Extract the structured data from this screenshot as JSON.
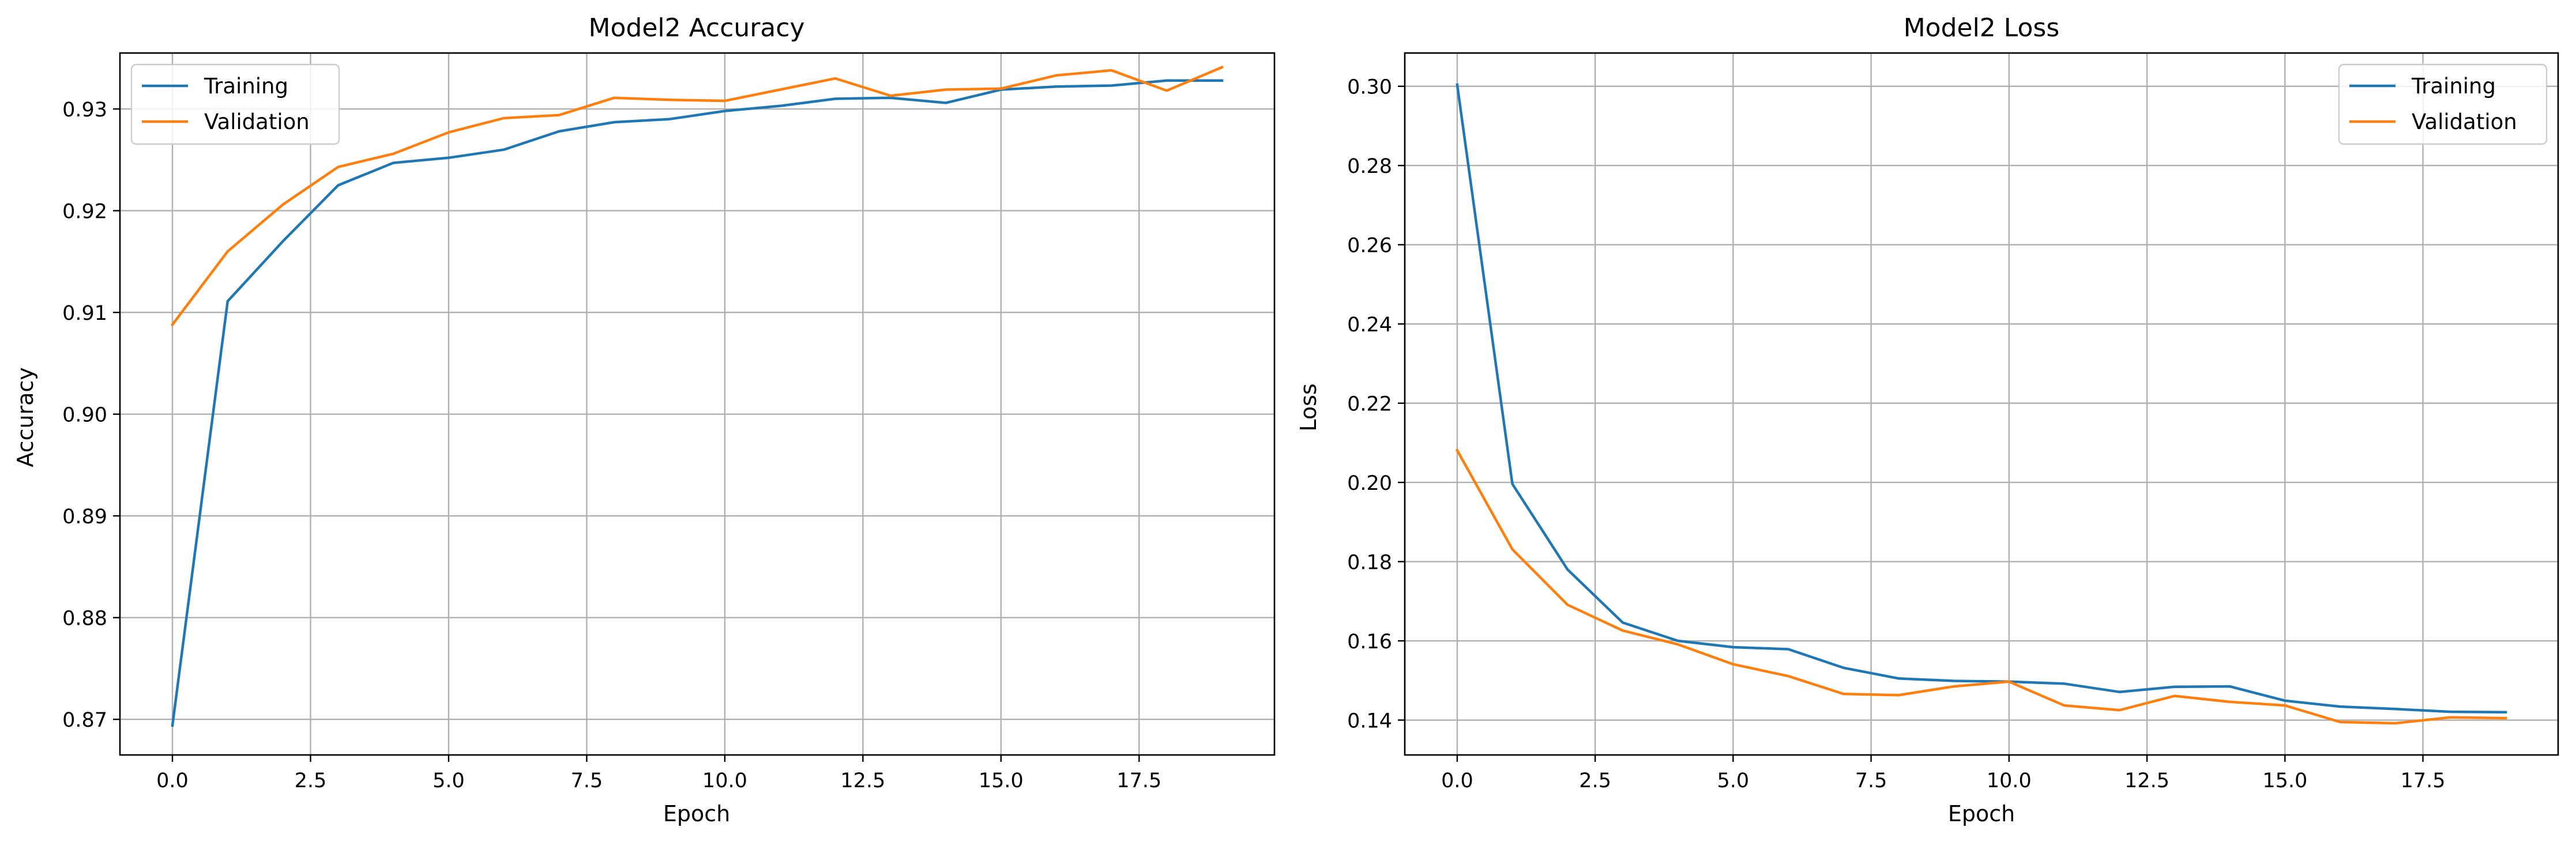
{
  "chart_data": [
    {
      "type": "line",
      "title": "Model2 Accuracy",
      "xlabel": "Epoch",
      "ylabel": "Accuracy",
      "xlim": [
        -0.95,
        19.95
      ],
      "ylim": [
        0.8665,
        0.9355
      ],
      "xticks": [
        "0.0",
        "2.5",
        "5.0",
        "7.5",
        "10.0",
        "12.5",
        "15.0",
        "17.5"
      ],
      "yticks": [
        "0.87",
        "0.88",
        "0.89",
        "0.90",
        "0.91",
        "0.92",
        "0.93"
      ],
      "grid": true,
      "legend_position": "upper left",
      "x": [
        0,
        1,
        2,
        3,
        4,
        5,
        6,
        7,
        8,
        9,
        10,
        11,
        12,
        13,
        14,
        15,
        16,
        17,
        18,
        19
      ],
      "series": [
        {
          "name": "Training",
          "color": "#1f77b4",
          "values": [
            0.8694,
            0.9111,
            0.917,
            0.9225,
            0.9247,
            0.9252,
            0.926,
            0.9278,
            0.9287,
            0.929,
            0.9298,
            0.9303,
            0.931,
            0.9311,
            0.9306,
            0.9319,
            0.9322,
            0.9323,
            0.9328,
            0.9328
          ]
        },
        {
          "name": "Validation",
          "color": "#ff7f0e",
          "values": [
            0.9088,
            0.916,
            0.9206,
            0.9243,
            0.9256,
            0.9277,
            0.9291,
            0.9294,
            0.9311,
            0.9309,
            0.9308,
            0.9319,
            0.933,
            0.9313,
            0.9319,
            0.932,
            0.9333,
            0.9338,
            0.9318,
            0.9341
          ]
        }
      ]
    },
    {
      "type": "line",
      "title": "Model2 Loss",
      "xlabel": "Epoch",
      "ylabel": "Loss",
      "xlim": [
        -0.95,
        19.95
      ],
      "ylim": [
        0.1312,
        0.3084
      ],
      "xticks": [
        "0.0",
        "2.5",
        "5.0",
        "7.5",
        "10.0",
        "12.5",
        "15.0",
        "17.5"
      ],
      "yticks": [
        "0.14",
        "0.16",
        "0.18",
        "0.20",
        "0.22",
        "0.24",
        "0.26",
        "0.28",
        "0.30"
      ],
      "grid": true,
      "legend_position": "upper right",
      "x": [
        0,
        1,
        2,
        3,
        4,
        5,
        6,
        7,
        8,
        9,
        10,
        11,
        12,
        13,
        14,
        15,
        16,
        17,
        18,
        19
      ],
      "series": [
        {
          "name": "Training",
          "color": "#1f77b4",
          "values": [
            0.3004,
            0.1996,
            0.178,
            0.1646,
            0.16,
            0.1584,
            0.1579,
            0.1532,
            0.1505,
            0.1499,
            0.1497,
            0.1492,
            0.1471,
            0.1484,
            0.1485,
            0.1449,
            0.1434,
            0.1428,
            0.1421,
            0.142
          ]
        },
        {
          "name": "Validation",
          "color": "#ff7f0e",
          "values": [
            0.2081,
            0.1831,
            0.1691,
            0.1626,
            0.1591,
            0.1541,
            0.1511,
            0.1466,
            0.1463,
            0.1485,
            0.1497,
            0.1437,
            0.1425,
            0.1461,
            0.1446,
            0.1437,
            0.1395,
            0.1392,
            0.1407,
            0.1405
          ]
        }
      ]
    }
  ]
}
